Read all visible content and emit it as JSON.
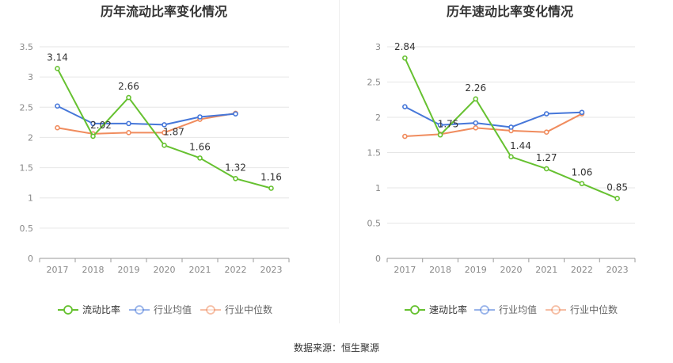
{
  "colors": {
    "series1": "#66c130",
    "series2": "#4677d9",
    "series3": "#f08c5e",
    "grid": "#e6e6e6",
    "axis": "#999999",
    "title": "#333333",
    "label": "#333333",
    "tick": "#888888"
  },
  "source_label": "数据来源：恒生聚源",
  "chart_data": [
    {
      "type": "line",
      "title": "历年流动比率变化情况",
      "x": [
        "2017",
        "2018",
        "2019",
        "2020",
        "2021",
        "2022",
        "2023"
      ],
      "ylim": [
        0,
        3.5
      ],
      "yticks": [
        0,
        0.5,
        1,
        1.5,
        2,
        2.5,
        3,
        3.5
      ],
      "ytick_labels": [
        "0",
        "0.5",
        "1",
        "1.5",
        "2",
        "2.5",
        "3",
        "3.5"
      ],
      "grid": true,
      "legend_position": "bottom",
      "series": [
        {
          "name": "流动比率",
          "values": [
            3.14,
            2.02,
            2.66,
            1.87,
            1.66,
            1.32,
            1.16
          ],
          "labels": [
            "3.14",
            "2.02",
            "2.66",
            "1.87",
            "1.66",
            "1.32",
            "1.16"
          ]
        },
        {
          "name": "行业均值",
          "values": [
            2.52,
            2.23,
            2.23,
            2.21,
            2.34,
            2.39,
            null
          ]
        },
        {
          "name": "行业中位数",
          "values": [
            2.16,
            2.06,
            2.08,
            2.08,
            2.3,
            2.4,
            null
          ]
        }
      ]
    },
    {
      "type": "line",
      "title": "历年速动比率变化情况",
      "x": [
        "2017",
        "2018",
        "2019",
        "2020",
        "2021",
        "2022",
        "2023"
      ],
      "ylim": [
        0,
        3
      ],
      "yticks": [
        0,
        0.5,
        1,
        1.5,
        2,
        2.5,
        3
      ],
      "ytick_labels": [
        "0",
        "0.5",
        "1",
        "1.5",
        "2",
        "2.5",
        "3"
      ],
      "grid": true,
      "legend_position": "bottom",
      "series": [
        {
          "name": "速动比率",
          "values": [
            2.84,
            1.75,
            2.26,
            1.44,
            1.27,
            1.06,
            0.85
          ],
          "labels": [
            "2.84",
            "1.75",
            "2.26",
            "1.44",
            "1.27",
            "1.06",
            "0.85"
          ]
        },
        {
          "name": "行业均值",
          "values": [
            2.15,
            1.89,
            1.92,
            1.86,
            2.05,
            2.07,
            null
          ]
        },
        {
          "name": "行业中位数",
          "values": [
            1.73,
            1.76,
            1.85,
            1.81,
            1.79,
            2.05,
            null
          ]
        }
      ]
    }
  ]
}
